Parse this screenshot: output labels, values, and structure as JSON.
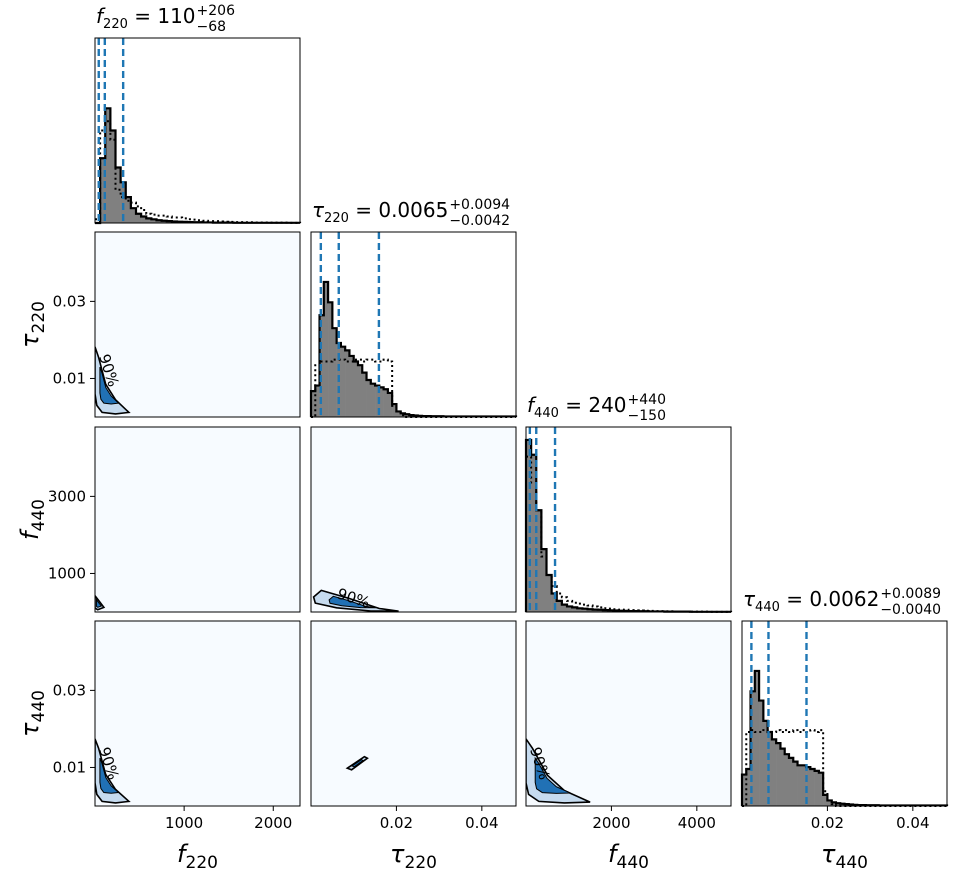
{
  "chart_data": {
    "type": "corner",
    "parameters": [
      {
        "key": "f220",
        "symbol": "f",
        "sub": "220",
        "range": [
          0,
          2300
        ],
        "ticks": [
          1000,
          2000
        ],
        "title": {
          "symbol": "f",
          "sub": "220",
          "median": "110",
          "plus": "+206",
          "minus": "−68"
        },
        "quantiles": [
          42,
          110,
          316
        ],
        "hist_fill": [
          0,
          0.35,
          0.62,
          0.5,
          0.3,
          0.22,
          0.14,
          0.08,
          0.05,
          0.035,
          0.025,
          0.02,
          0.015,
          0.012,
          0.01,
          0.008,
          0.007,
          0.006,
          0.005,
          0.004,
          0.004,
          0.003,
          0.003,
          0.002,
          0.002,
          0.002,
          0.002,
          0.001,
          0.001,
          0.001,
          0.001,
          0.001,
          0.001,
          0.001,
          0.001,
          0.001,
          0.001,
          0.001,
          0.001,
          0.001
        ],
        "hist_prior": [
          0.02,
          0.5,
          0.55,
          0.45,
          0.18,
          0.14,
          0.12,
          0.11,
          0.09,
          0.07,
          0.05,
          0.045,
          0.04,
          0.04,
          0.035,
          0.03,
          0.03,
          0.025,
          0.02,
          0.018,
          0.015,
          0.012,
          0.01,
          0.01,
          0.008,
          0.007,
          0.006,
          0.005,
          0.005,
          0.004,
          0.004,
          0.003,
          0.003,
          0.003,
          0.002,
          0.002,
          0.002,
          0.002,
          0.001,
          0.001
        ]
      },
      {
        "key": "tau220",
        "symbol": "τ",
        "sub": "220",
        "range": [
          0,
          0.048
        ],
        "ticks": [
          0.02,
          0.04
        ],
        "yticks": [
          0.01,
          0.03
        ],
        "title": {
          "symbol": "τ",
          "sub": "220",
          "median": "0.0065",
          "plus": "+0.0094",
          "minus": "−0.0042"
        },
        "quantiles": [
          0.0023,
          0.0065,
          0.0159
        ],
        "hist_fill": [
          0.14,
          0.17,
          0.55,
          0.73,
          0.62,
          0.48,
          0.4,
          0.38,
          0.36,
          0.33,
          0.3,
          0.28,
          0.24,
          0.2,
          0.18,
          0.17,
          0.16,
          0.15,
          0.13,
          0.07,
          0.03,
          0.02,
          0.015,
          0.01,
          0.008,
          0.006,
          0.005,
          0.005,
          0.004,
          0.004,
          0.004,
          0.003,
          0.003,
          0.003,
          0.003,
          0.003,
          0.003,
          0.003,
          0.003,
          0.003,
          0.003,
          0.003,
          0.003,
          0.003,
          0.003,
          0.003,
          0.003,
          0.003
        ],
        "hist_prior": [
          0.0,
          0.28,
          0.3,
          0.3,
          0.3,
          0.31,
          0.31,
          0.31,
          0.3,
          0.3,
          0.31,
          0.31,
          0.3,
          0.31,
          0.31,
          0.3,
          0.3,
          0.31,
          0.3,
          0.06,
          0.03,
          0.01,
          0.0,
          0.0,
          0.0,
          0.0,
          0.0,
          0.0,
          0.0,
          0.0,
          0.0,
          0.0,
          0.0,
          0.0,
          0.0,
          0.0,
          0.0,
          0.0,
          0.0,
          0.0,
          0.0,
          0.0,
          0.0,
          0.0,
          0.0,
          0.0,
          0.0,
          0.0
        ]
      },
      {
        "key": "f440",
        "symbol": "f",
        "sub": "440",
        "range": [
          0,
          4800
        ],
        "ticks": [
          2000,
          4000
        ],
        "yticks": [
          1000,
          3000
        ],
        "title": {
          "symbol": "f",
          "sub": "440",
          "median": "240",
          "plus": "+440",
          "minus": "−150"
        },
        "quantiles": [
          90,
          240,
          680
        ],
        "hist_fill": [
          0.93,
          0.85,
          0.55,
          0.34,
          0.2,
          0.1,
          0.06,
          0.04,
          0.03,
          0.025,
          0.02,
          0.018,
          0.015,
          0.013,
          0.012,
          0.01,
          0.009,
          0.008,
          0.007,
          0.006,
          0.005,
          0.005,
          0.004,
          0.004,
          0.003,
          0.003,
          0.003,
          0.002,
          0.002,
          0.002,
          0.002,
          0.002,
          0.001,
          0.001,
          0.001,
          0.001,
          0.001,
          0.001,
          0.001,
          0.001
        ],
        "hist_prior": [
          0.84,
          0.7,
          0.55,
          0.3,
          0.2,
          0.14,
          0.1,
          0.08,
          0.06,
          0.05,
          0.045,
          0.04,
          0.035,
          0.03,
          0.025,
          0.02,
          0.018,
          0.015,
          0.013,
          0.012,
          0.01,
          0.009,
          0.008,
          0.007,
          0.006,
          0.005,
          0.005,
          0.004,
          0.004,
          0.003,
          0.003,
          0.003,
          0.002,
          0.002,
          0.002,
          0.002,
          0.001,
          0.001,
          0.001,
          0.001
        ]
      },
      {
        "key": "tau440",
        "symbol": "τ",
        "sub": "440",
        "range": [
          0,
          0.048
        ],
        "ticks": [
          0.02,
          0.04
        ],
        "yticks": [
          0.01,
          0.03
        ],
        "title": {
          "symbol": "τ",
          "sub": "440",
          "median": "0.0062",
          "plus": "+0.0089",
          "minus": "−0.0040"
        },
        "quantiles": [
          0.0022,
          0.0062,
          0.0151
        ],
        "hist_fill": [
          0.17,
          0.2,
          0.62,
          0.73,
          0.57,
          0.46,
          0.4,
          0.36,
          0.34,
          0.31,
          0.28,
          0.26,
          0.24,
          0.22,
          0.22,
          0.21,
          0.2,
          0.19,
          0.18,
          0.06,
          0.03,
          0.02,
          0.015,
          0.012,
          0.01,
          0.008,
          0.006,
          0.005,
          0.005,
          0.004,
          0.004,
          0.004,
          0.003,
          0.003,
          0.003,
          0.003,
          0.003,
          0.003,
          0.003,
          0.003,
          0.003,
          0.003,
          0.003,
          0.003,
          0.003,
          0.003,
          0.003,
          0.003
        ],
        "hist_prior": [
          0.0,
          0.4,
          0.41,
          0.4,
          0.4,
          0.41,
          0.4,
          0.4,
          0.41,
          0.4,
          0.41,
          0.4,
          0.41,
          0.4,
          0.41,
          0.4,
          0.41,
          0.4,
          0.41,
          0.08,
          0.03,
          0.01,
          0.0,
          0.0,
          0.0,
          0.0,
          0.0,
          0.0,
          0.0,
          0.0,
          0.0,
          0.0,
          0.0,
          0.0,
          0.0,
          0.0,
          0.0,
          0.0,
          0.0,
          0.0,
          0.0,
          0.0,
          0.0,
          0.0,
          0.0,
          0.0,
          0.0,
          0.0
        ]
      }
    ],
    "contour_label": "90%",
    "contours": [
      {
        "col": 0,
        "row": 1,
        "points": [
          [
            0,
            0.0182
          ],
          [
            40,
            0.0155
          ],
          [
            120,
            0.0085
          ],
          [
            230,
            0.0045
          ],
          [
            380,
            0.0012
          ],
          [
            230,
            0.0008
          ],
          [
            80,
            0.0012
          ],
          [
            20,
            0.003
          ],
          [
            0,
            0.006
          ]
        ]
      },
      {
        "col": 0,
        "row": 2,
        "points": [
          [
            0,
            420
          ],
          [
            40,
            300
          ],
          [
            100,
            120
          ],
          [
            30,
            60
          ],
          [
            0,
            100
          ]
        ]
      },
      {
        "col": 1,
        "row": 2,
        "points": [
          [
            0.0006,
            390
          ],
          [
            0.0024,
            560
          ],
          [
            0.009,
            350
          ],
          [
            0.016,
            90
          ],
          [
            0.0205,
            20
          ],
          [
            0.014,
            25
          ],
          [
            0.006,
            110
          ],
          [
            0.001,
            230
          ]
        ]
      },
      {
        "col": 0,
        "row": 3,
        "points": [
          [
            0,
            0.0174
          ],
          [
            40,
            0.015
          ],
          [
            120,
            0.0082
          ],
          [
            230,
            0.0043
          ],
          [
            380,
            0.0012
          ],
          [
            230,
            0.0008
          ],
          [
            80,
            0.0012
          ],
          [
            20,
            0.003
          ],
          [
            0,
            0.006
          ]
        ]
      },
      {
        "col": 1,
        "row": 3,
        "points": [
          [
            0.0085,
            0.0098
          ],
          [
            0.0125,
            0.0128
          ],
          [
            0.0132,
            0.0124
          ],
          [
            0.0095,
            0.0094
          ]
        ]
      },
      {
        "col": 2,
        "row": 3,
        "points": [
          [
            0,
            0.0174
          ],
          [
            150,
            0.015
          ],
          [
            500,
            0.008
          ],
          [
            900,
            0.004
          ],
          [
            1500,
            0.001
          ],
          [
            900,
            0.0008
          ],
          [
            300,
            0.0012
          ],
          [
            60,
            0.003
          ],
          [
            0,
            0.006
          ]
        ]
      }
    ],
    "colors": {
      "hist_fill": "#808080",
      "quantile_line": "#1f77b4",
      "density_bg": "#f7fbff",
      "contour_fill": "#2171b5",
      "contour_light": "#c6dbef"
    }
  }
}
